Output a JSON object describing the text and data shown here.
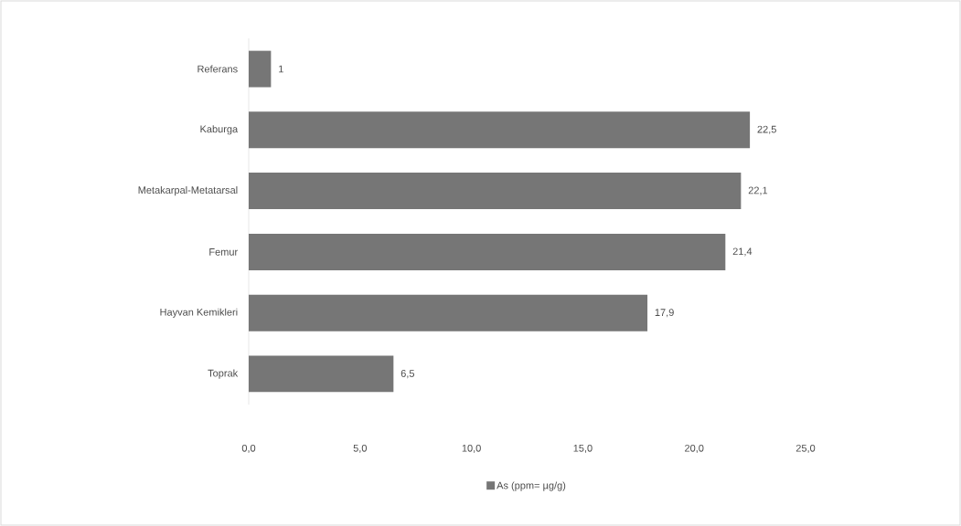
{
  "chart_data": {
    "type": "bar",
    "orientation": "horizontal",
    "categories": [
      "Referans",
      "Kaburga",
      "Metakarpal-Metatarsal",
      "Femur",
      "Hayvan Kemikleri",
      "Toprak"
    ],
    "series": [
      {
        "name": "As (ppm= µg/g)",
        "color": "#767676",
        "values": [
          1,
          22.5,
          22.1,
          21.4,
          17.9,
          6.5
        ],
        "value_labels": [
          "1",
          "22,5",
          "22,1",
          "21,4",
          "17,9",
          "6,5"
        ]
      }
    ],
    "xlim": [
      0,
      25
    ],
    "xticks": [
      {
        "value": 0,
        "label": "0,0"
      },
      {
        "value": 5,
        "label": "5,0"
      },
      {
        "value": 10,
        "label": "10,0"
      },
      {
        "value": 15,
        "label": "15,0"
      },
      {
        "value": 20,
        "label": "20,0"
      },
      {
        "value": 25,
        "label": "25,0"
      }
    ],
    "grid": false,
    "legend": "bottom"
  }
}
